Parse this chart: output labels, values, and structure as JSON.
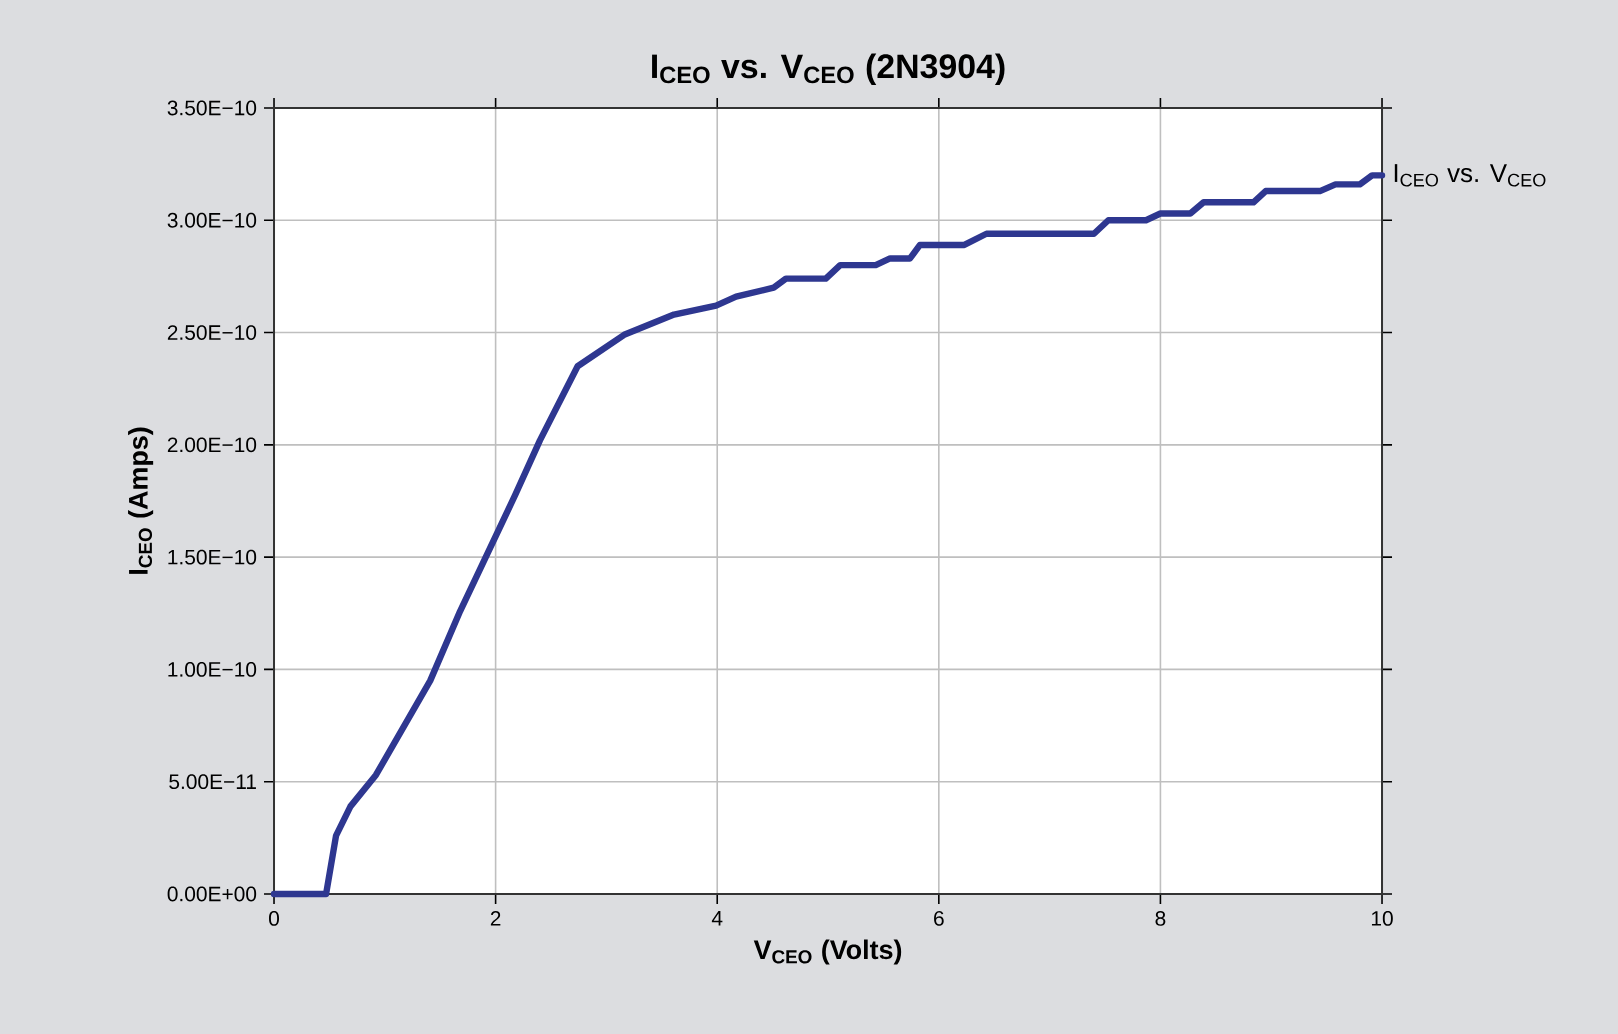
{
  "chart_data": {
    "type": "line",
    "title": "I$_{CEO}$ vs. V$_{CEO}$ (2N3904)",
    "xlabel": "V$_{CEO}$ (Volts)",
    "ylabel": "I$_{CEO}$ (Amps)",
    "x": [
      0,
      0.47,
      0.56,
      0.69,
      0.92,
      1.41,
      1.68,
      2.18,
      2.4,
      2.74,
      3.16,
      3.61,
      3.99,
      4.17,
      4.51,
      4.62,
      4.98,
      5.11,
      5.43,
      5.56,
      5.74,
      5.83,
      6.23,
      6.43,
      7.4,
      7.53,
      7.87,
      8.0,
      8.27,
      8.39,
      8.84,
      8.95,
      9.44,
      9.58,
      9.8,
      9.91,
      10
    ],
    "series": [
      {
        "name": "I$_{CEO}$ vs. V$_{CEO}$",
        "color": "#2e3790",
        "values": [
          0,
          0,
          2.6e-11,
          3.9e-11,
          5.3e-11,
          9.5e-11,
          1.26e-10,
          1.78e-10,
          2.02e-10,
          2.35e-10,
          2.49e-10,
          2.58e-10,
          2.62e-10,
          2.66e-10,
          2.7e-10,
          2.74e-10,
          2.74e-10,
          2.8e-10,
          2.8e-10,
          2.83e-10,
          2.83e-10,
          2.89e-10,
          2.89e-10,
          2.94e-10,
          2.94e-10,
          3e-10,
          3e-10,
          3.03e-10,
          3.03e-10,
          3.08e-10,
          3.08e-10,
          3.13e-10,
          3.13e-10,
          3.16e-10,
          3.16e-10,
          3.2e-10,
          3.2e-10
        ]
      }
    ],
    "xlim": [
      0,
      10
    ],
    "xticks": [
      0,
      2,
      4,
      6,
      8,
      10
    ],
    "ylim": [
      0,
      3.5e-10
    ],
    "yticks": [
      {
        "value": 0,
        "label": "0.00E+00"
      },
      {
        "value": 5e-11,
        "label": "5.00E−11"
      },
      {
        "value": 1e-10,
        "label": "1.00E−10"
      },
      {
        "value": 1.5e-10,
        "label": "1.50E−10"
      },
      {
        "value": 2e-10,
        "label": "2.00E−10"
      },
      {
        "value": 2.5e-10,
        "label": "2.50E−10"
      },
      {
        "value": 3e-10,
        "label": "3.00E−10"
      },
      {
        "value": 3.5e-10,
        "label": "3.50E−10"
      }
    ],
    "grid": true,
    "legend": false,
    "marker": "none",
    "line_style": "solid"
  }
}
